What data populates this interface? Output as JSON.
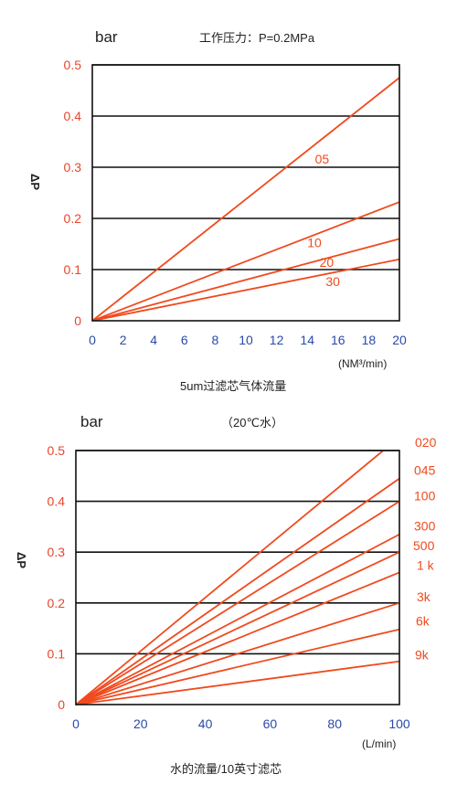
{
  "chart_data": [
    {
      "type": "line",
      "title": "工作压力：P=0.2MPa",
      "unit_label": "bar",
      "ylabel": "ΔP",
      "xunit": "(NM³/min)",
      "caption": "5um过滤芯气体流量",
      "xlim": [
        0,
        20
      ],
      "ylim": [
        0,
        0.5
      ],
      "xticks": [
        0,
        2,
        4,
        6,
        8,
        10,
        12,
        14,
        16,
        18,
        20
      ],
      "yticks": [
        0,
        0.1,
        0.2,
        0.3,
        0.4,
        0.5
      ],
      "ytick_labels": [
        "0",
        "0.1",
        "0.2",
        "0.3",
        "0.4",
        "0.5"
      ],
      "grid": "horizontal",
      "series": [
        {
          "name": "05",
          "x": [
            0,
            20
          ],
          "y": [
            0,
            0.475
          ]
        },
        {
          "name": "10",
          "x": [
            0,
            20
          ],
          "y": [
            0,
            0.232
          ]
        },
        {
          "name": "20",
          "x": [
            0,
            20
          ],
          "y": [
            0,
            0.16
          ]
        },
        {
          "name": "30",
          "x": [
            0,
            20
          ],
          "y": [
            0,
            0.12
          ]
        }
      ]
    },
    {
      "type": "line",
      "title": "（20℃水）",
      "unit_label": "bar",
      "ylabel": "ΔP",
      "xunit": "(L/min)",
      "caption": "水的流量/10英寸滤芯",
      "xlim": [
        0,
        100
      ],
      "ylim": [
        0,
        0.5
      ],
      "xticks": [
        0,
        20,
        40,
        60,
        80,
        100
      ],
      "yticks": [
        0,
        0.1,
        0.2,
        0.3,
        0.4,
        0.5
      ],
      "ytick_labels": [
        "0",
        "0.1",
        "0.2",
        "0.3",
        "0.4",
        "0.5"
      ],
      "grid": "horizontal",
      "series": [
        {
          "name": "020",
          "x": [
            0,
            95
          ],
          "y": [
            0,
            0.5
          ]
        },
        {
          "name": "045",
          "x": [
            0,
            100
          ],
          "y": [
            0,
            0.445
          ]
        },
        {
          "name": "100",
          "x": [
            0,
            100
          ],
          "y": [
            0,
            0.4
          ]
        },
        {
          "name": "300",
          "x": [
            0,
            100
          ],
          "y": [
            0,
            0.335
          ]
        },
        {
          "name": "500",
          "x": [
            0,
            100
          ],
          "y": [
            0,
            0.3
          ]
        },
        {
          "name": "1 k",
          "x": [
            0,
            100
          ],
          "y": [
            0,
            0.26
          ]
        },
        {
          "name": "3k",
          "x": [
            0,
            100
          ],
          "y": [
            0,
            0.2
          ]
        },
        {
          "name": "6k",
          "x": [
            0,
            100
          ],
          "y": [
            0,
            0.148
          ]
        },
        {
          "name": "9k",
          "x": [
            0,
            100
          ],
          "y": [
            0,
            0.085
          ]
        }
      ]
    }
  ],
  "colors": {
    "line": "#f04a1e",
    "ytick": "#e8452a",
    "xtick": "#2a4aa8",
    "label": "#222222",
    "grid": "#111111"
  }
}
